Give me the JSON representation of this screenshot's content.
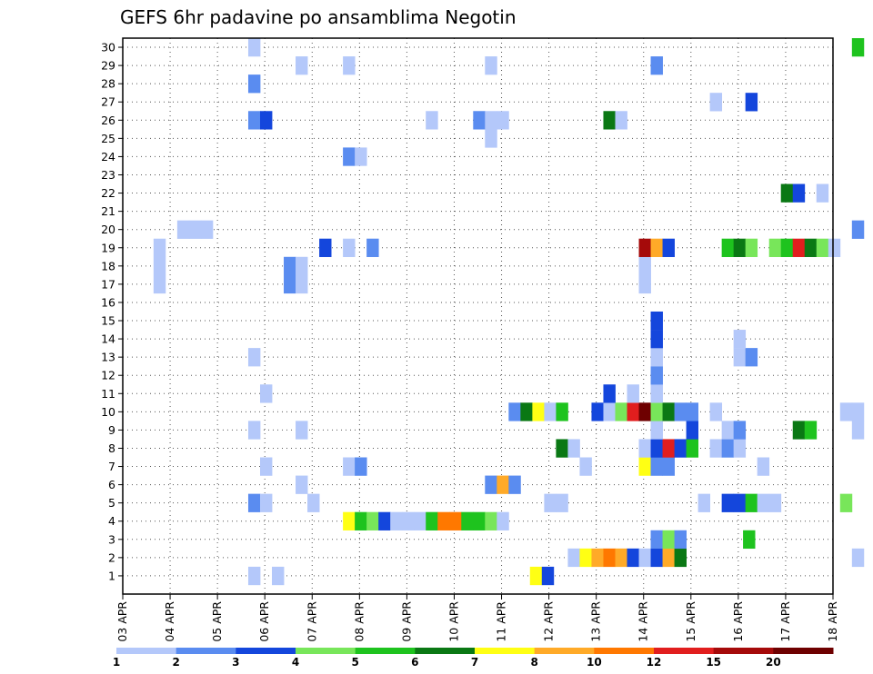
{
  "chart_data": {
    "type": "heatmap",
    "title": "GEFS 6hr padavine po ansamblima Negotin",
    "x_labels": [
      "03 APR",
      "04 APR",
      "05 APR",
      "06 APR",
      "07 APR",
      "08 APR",
      "09 APR",
      "10 APR",
      "11 APR",
      "12 APR",
      "13 APR",
      "14 APR",
      "15 APR",
      "16 APR",
      "17 APR",
      "18 APR"
    ],
    "y_labels": [
      "1",
      "2",
      "3",
      "4",
      "5",
      "6",
      "7",
      "8",
      "9",
      "10",
      "11",
      "12",
      "13",
      "14",
      "15",
      "16",
      "17",
      "18",
      "19",
      "20",
      "21",
      "22",
      "23",
      "24",
      "25",
      "26",
      "27",
      "28",
      "29",
      "30"
    ],
    "grid": true,
    "colorbar": {
      "labels": [
        "1",
        "2",
        "3",
        "4",
        "5",
        "6",
        "7",
        "8",
        "10",
        "12",
        "15",
        "20"
      ],
      "colors": [
        "#b4c8fa",
        "#5a8cf0",
        "#1446dc",
        "#78e65a",
        "#1ec31e",
        "#0a7814",
        "#ffff14",
        "#ffaa28",
        "#ff7800",
        "#e11e1e",
        "#a50a0a",
        "#6e0000"
      ]
    },
    "cells": [
      [
        5.25,
        1,
        0
      ],
      [
        5.5,
        1,
        0
      ],
      [
        8.0,
        1,
        6
      ],
      [
        8.25,
        1,
        1
      ],
      [
        4.25,
        2,
        0
      ],
      [
        4.5,
        2,
        0
      ],
      [
        5.0,
        2,
        1
      ],
      [
        5.25,
        2,
        2
      ],
      [
        5.5,
        2,
        6
      ],
      [
        5.75,
        2,
        7
      ],
      [
        6.25,
        2,
        0
      ],
      [
        6.5,
        2,
        4
      ],
      [
        7.25,
        2,
        0
      ],
      [
        7.75,
        2,
        0
      ],
      [
        9.25,
        2,
        1
      ],
      [
        6.25,
        3,
        1
      ],
      [
        6.5,
        3,
        3
      ],
      [
        7.0,
        3,
        4
      ],
      [
        7.25,
        4,
        0
      ],
      [
        7.5,
        4,
        1
      ],
      [
        7.75,
        4,
        2
      ],
      [
        8.5,
        4,
        0
      ],
      [
        8.75,
        4,
        1
      ],
      [
        9.25,
        5,
        1
      ],
      [
        9.5,
        5,
        4
      ],
      [
        9.75,
        5,
        3
      ],
      [
        10.0,
        5,
        0
      ],
      [
        10.25,
        5,
        2
      ],
      [
        10.5,
        5,
        5
      ],
      [
        10.75,
        5,
        8
      ],
      [
        11.0,
        5,
        8
      ],
      [
        11.25,
        5,
        9
      ],
      [
        11.5,
        5,
        10
      ],
      [
        11.75,
        5,
        10
      ],
      [
        12.0,
        5,
        8
      ],
      [
        12.25,
        5,
        4
      ],
      [
        12.5,
        5,
        5
      ],
      [
        12.75,
        5,
        0
      ],
      [
        13.0,
        6,
        5
      ],
      [
        13.25,
        6,
        1
      ],
      [
        13.5,
        6,
        0
      ],
      [
        13.5,
        7,
        2
      ],
      [
        13.75,
        7,
        3
      ],
      [
        14.0,
        7,
        0
      ],
      [
        14.25,
        7,
        0
      ],
      [
        14.5,
        7,
        2
      ],
      [
        14.75,
        7,
        0
      ],
      [
        15.0,
        7,
        0
      ],
      [
        15.25,
        7,
        1
      ],
      [
        15.5,
        7,
        5
      ],
      [
        15.75,
        7,
        3
      ],
      [
        16.0,
        7,
        0
      ],
      [
        16.25,
        7,
        5
      ],
      [
        16.5,
        7,
        3
      ],
      [
        16.75,
        7,
        2
      ],
      [
        17.0,
        7,
        1
      ],
      [
        17.25,
        7,
        0
      ],
      [
        17.5,
        7,
        0
      ],
      [
        18.0,
        8,
        0
      ],
      [
        18.25,
        8,
        1
      ],
      [
        18.5,
        8,
        2
      ],
      [
        18.75,
        8,
        8
      ],
      [
        19.0,
        8,
        4
      ],
      [
        19.25,
        8,
        2
      ],
      [
        19.5,
        8,
        0
      ],
      [
        19.75,
        8,
        0
      ],
      [
        20.0,
        8,
        4
      ],
      [
        20.25,
        8,
        1
      ],
      [
        20.5,
        8,
        5
      ],
      [
        20.75,
        8,
        5
      ],
      [
        21.0,
        8,
        5
      ],
      [
        21.25,
        8,
        4
      ],
      [
        21.5,
        8,
        0
      ],
      [
        22.0,
        8,
        0
      ],
      [
        22.25,
        8,
        3
      ],
      [
        22.5,
        8,
        2
      ],
      [
        22.75,
        8,
        0
      ],
      [
        23.0,
        8,
        2
      ],
      [
        23.25,
        8,
        4
      ],
      [
        23.5,
        8,
        0
      ],
      [
        23.75,
        8,
        2
      ],
      [
        24.0,
        8,
        0
      ],
      [
        25.0,
        9,
        1
      ],
      [
        25.25,
        9,
        2
      ],
      [
        25.5,
        9,
        0
      ],
      [
        25.75,
        9,
        0
      ],
      [
        26.0,
        9,
        2
      ],
      [
        26.25,
        9,
        6
      ],
      [
        26.5,
        9,
        3
      ],
      [
        26.75,
        9,
        6
      ],
      [
        27.0,
        9,
        8
      ],
      [
        27.25,
        9,
        6
      ],
      [
        27.5,
        9,
        3
      ],
      [
        27.75,
        9,
        4
      ],
      [
        28.0,
        9,
        0
      ],
      [
        28.25,
        9,
        2
      ],
      [
        28.5,
        9,
        1
      ],
      [
        29.0,
        9,
        3
      ],
      [
        29.25,
        9,
        0
      ],
      [
        29.5,
        9,
        2
      ],
      [
        29.75,
        9,
        1
      ],
      [
        30.0,
        9,
        5
      ],
      [
        30.25,
        10,
        1
      ],
      [
        30.5,
        10,
        2
      ],
      [
        30.75,
        10,
        2
      ],
      [
        31.0,
        10,
        4
      ],
      [
        31.25,
        10,
        9
      ],
      [
        31.5,
        10,
        3
      ],
      [
        31.75,
        10,
        10
      ],
      [
        32.0,
        10,
        2
      ],
      [
        32.25,
        11,
        2
      ],
      [
        32.5,
        11,
        4
      ],
      [
        32.75,
        11,
        6
      ],
      [
        33.0,
        11,
        1
      ],
      [
        33.25,
        11,
        0
      ],
      [
        33.5,
        11,
        2
      ],
      [
        33.75,
        11,
        0
      ],
      [
        34.0,
        11,
        0
      ],
      [
        34.25,
        11,
        1
      ],
      [
        34.5,
        11,
        2
      ],
      [
        34.75,
        11,
        0
      ],
      [
        35.0,
        11,
        3
      ],
      [
        35.25,
        11,
        6
      ],
      [
        36.0,
        12,
        4
      ],
      [
        36.25,
        12,
        3
      ],
      [
        36.5,
        12,
        5
      ],
      [
        36.75,
        12,
        6
      ],
      [
        37.0,
        12,
        4
      ],
      [
        37.25,
        12,
        6
      ],
      [
        37.5,
        12,
        8
      ],
      [
        37.75,
        12,
        10
      ],
      [
        38.0,
        12,
        10
      ],
      [
        38.25,
        12,
        6
      ],
      [
        38.5,
        12,
        4
      ],
      [
        38.75,
        12,
        4
      ],
      [
        39.0,
        12,
        0
      ],
      [
        39.25,
        12,
        4
      ],
      [
        39.5,
        12,
        9
      ],
      [
        39.75,
        12,
        6
      ],
      [
        40.0,
        12,
        2
      ],
      [
        40.5,
        13,
        6
      ],
      [
        40.75,
        13,
        5
      ],
      [
        41.0,
        13,
        4
      ],
      [
        41.25,
        13,
        0
      ],
      [
        41.5,
        13,
        3
      ],
      [
        41.75,
        13,
        3
      ],
      [
        42.0,
        13,
        9
      ],
      [
        42.25,
        13,
        3
      ],
      [
        42.5,
        13,
        10
      ],
      [
        42.75,
        13,
        10
      ],
      [
        43.0,
        13,
        4
      ],
      [
        43.25,
        13,
        2
      ],
      [
        43.5,
        13,
        2
      ],
      [
        43.75,
        13,
        3
      ],
      [
        44.0,
        14,
        4
      ],
      [
        44.25,
        14,
        2
      ],
      [
        44.5,
        14,
        4
      ],
      [
        44.75,
        14,
        0
      ],
      [
        45.0,
        14,
        1
      ],
      [
        45.25,
        14,
        6
      ],
      [
        45.5,
        14,
        4
      ],
      [
        45.75,
        14,
        0
      ],
      [
        46.0,
        14,
        1
      ],
      [
        46.25,
        14,
        5
      ]
    ],
    "cell_values": [
      [
        1,
        2,
        10,
        1
      ],
      [
        1,
        2,
        10,
        1
      ],
      [
        1,
        2,
        10,
        1
      ],
      [
        1,
        2,
        10,
        1
      ],
      [
        1,
        1,
        1,
        1
      ],
      [
        1,
        1,
        1,
        1
      ],
      [
        1,
        1,
        1,
        1
      ],
      [
        1,
        1,
        1,
        1
      ],
      [
        1,
        1,
        1,
        1
      ],
      [
        1,
        1,
        1,
        1
      ],
      [
        1,
        1,
        1,
        1
      ],
      [
        1,
        1,
        1,
        1
      ],
      [
        1,
        1,
        1,
        1
      ],
      [
        1,
        1,
        1,
        1
      ],
      [
        1,
        1,
        1,
        1
      ]
    ],
    "rows": {
      "1": [
        [
          8.6,
          7
        ],
        [
          8.85,
          3
        ],
        [
          2.65,
          1
        ],
        [
          3.15,
          1
        ]
      ],
      "2": [
        [
          9.4,
          1
        ],
        [
          9.65,
          7
        ],
        [
          9.9,
          8
        ],
        [
          10.15,
          9
        ],
        [
          10.4,
          8
        ],
        [
          10.65,
          3
        ],
        [
          10.9,
          1
        ],
        [
          11.15,
          3
        ],
        [
          11.4,
          8
        ],
        [
          11.65,
          6
        ],
        [
          15.4,
          1
        ]
      ],
      "3": [
        [
          11.15,
          2
        ],
        [
          11.4,
          4
        ],
        [
          11.65,
          2
        ],
        [
          13.1,
          5
        ]
      ],
      "4": [
        [
          4.65,
          7
        ],
        [
          4.9,
          5
        ],
        [
          5.15,
          4
        ],
        [
          5.4,
          3
        ],
        [
          5.65,
          1
        ],
        [
          5.9,
          1
        ],
        [
          6.15,
          1
        ],
        [
          6.4,
          5
        ],
        [
          6.65,
          9
        ],
        [
          6.9,
          9
        ],
        [
          7.15,
          5
        ],
        [
          7.4,
          5
        ],
        [
          7.65,
          4
        ],
        [
          7.9,
          1
        ]
      ],
      "5": [
        [
          2.65,
          2
        ],
        [
          2.9,
          1
        ],
        [
          3.9,
          1
        ],
        [
          8.9,
          1
        ],
        [
          9.15,
          1
        ],
        [
          12.15,
          1
        ],
        [
          12.65,
          3
        ],
        [
          12.9,
          3
        ],
        [
          13.15,
          5
        ],
        [
          13.4,
          1
        ],
        [
          13.65,
          1
        ],
        [
          15.15,
          4
        ]
      ],
      "6": [
        [
          3.65,
          1
        ],
        [
          7.65,
          2
        ],
        [
          7.9,
          8
        ],
        [
          8.15,
          2
        ]
      ],
      "7": [
        [
          2.9,
          1
        ],
        [
          4.65,
          1
        ],
        [
          4.9,
          2
        ],
        [
          9.65,
          1
        ],
        [
          10.9,
          7
        ],
        [
          11.15,
          2
        ],
        [
          11.4,
          2
        ],
        [
          13.4,
          1
        ]
      ],
      "8": [
        [
          9.15,
          6
        ],
        [
          9.4,
          1
        ],
        [
          10.9,
          1
        ],
        [
          11.15,
          3
        ],
        [
          11.4,
          10
        ],
        [
          11.65,
          3
        ],
        [
          11.9,
          5
        ],
        [
          12.4,
          1
        ],
        [
          12.65,
          2
        ],
        [
          12.9,
          1
        ]
      ],
      "9": [
        [
          2.65,
          1
        ],
        [
          3.65,
          1
        ],
        [
          11.15,
          1
        ],
        [
          11.9,
          3
        ],
        [
          12.65,
          1
        ],
        [
          12.9,
          2
        ],
        [
          14.15,
          6
        ],
        [
          14.4,
          5
        ],
        [
          15.4,
          1
        ]
      ],
      "10": [
        [
          8.15,
          2
        ],
        [
          8.4,
          6
        ],
        [
          8.65,
          7
        ],
        [
          8.9,
          1
        ],
        [
          9.15,
          5
        ],
        [
          9.9,
          3
        ],
        [
          10.15,
          1
        ],
        [
          10.4,
          4
        ],
        [
          10.65,
          10
        ],
        [
          10.9,
          12
        ],
        [
          11.15,
          4
        ],
        [
          11.4,
          6
        ],
        [
          11.65,
          2
        ],
        [
          11.9,
          2
        ],
        [
          12.4,
          1
        ],
        [
          15.15,
          1
        ],
        [
          15.4,
          1
        ]
      ],
      "11": [
        [
          2.9,
          1
        ],
        [
          10.15,
          3
        ],
        [
          10.65,
          1
        ],
        [
          11.15,
          1
        ]
      ],
      "12": [
        [
          11.15,
          2
        ]
      ],
      "13": [
        [
          2.65,
          1
        ],
        [
          11.15,
          1
        ],
        [
          12.9,
          1
        ],
        [
          13.15,
          2
        ]
      ],
      "14": [
        [
          11.15,
          3
        ],
        [
          12.9,
          1
        ]
      ],
      "15": [
        [
          11.15,
          3
        ]
      ],
      "17": [
        [
          0.65,
          1
        ],
        [
          3.4,
          2
        ],
        [
          3.65,
          1
        ],
        [
          10.9,
          1
        ]
      ],
      "18": [
        [
          0.65,
          1
        ],
        [
          3.4,
          2
        ],
        [
          3.65,
          1
        ],
        [
          10.9,
          1
        ]
      ],
      "19": [
        [
          0.65,
          1
        ],
        [
          4.15,
          3
        ],
        [
          4.65,
          1
        ],
        [
          5.15,
          2
        ],
        [
          10.9,
          11
        ],
        [
          11.15,
          8
        ],
        [
          11.4,
          3
        ],
        [
          12.65,
          5
        ],
        [
          12.9,
          6
        ],
        [
          13.15,
          4
        ],
        [
          13.65,
          4
        ],
        [
          13.9,
          5
        ],
        [
          14.15,
          10
        ],
        [
          14.4,
          6
        ],
        [
          14.65,
          4
        ],
        [
          14.9,
          1
        ]
      ],
      "20": [
        [
          1.15,
          1
        ],
        [
          1.4,
          1
        ],
        [
          1.65,
          1
        ],
        [
          15.4,
          2
        ]
      ],
      "22": [
        [
          13.9,
          6
        ],
        [
          14.15,
          3
        ],
        [
          14.65,
          1
        ]
      ],
      "24": [
        [
          4.65,
          2
        ],
        [
          4.9,
          1
        ]
      ],
      "25": [
        [
          7.65,
          1
        ]
      ],
      "26": [
        [
          2.65,
          2
        ],
        [
          2.9,
          3
        ],
        [
          6.4,
          1
        ],
        [
          7.4,
          2
        ],
        [
          7.65,
          1
        ],
        [
          7.9,
          1
        ],
        [
          10.15,
          6
        ],
        [
          10.4,
          1
        ]
      ],
      "27": [
        [
          12.4,
          1
        ],
        [
          13.15,
          3
        ]
      ],
      "28": [
        [
          2.65,
          2
        ]
      ],
      "29": [
        [
          3.65,
          1
        ],
        [
          4.65,
          1
        ],
        [
          7.65,
          1
        ],
        [
          11.15,
          2
        ]
      ],
      "30": [
        [
          2.65,
          1
        ],
        [
          15.4,
          5
        ]
      ]
    }
  }
}
